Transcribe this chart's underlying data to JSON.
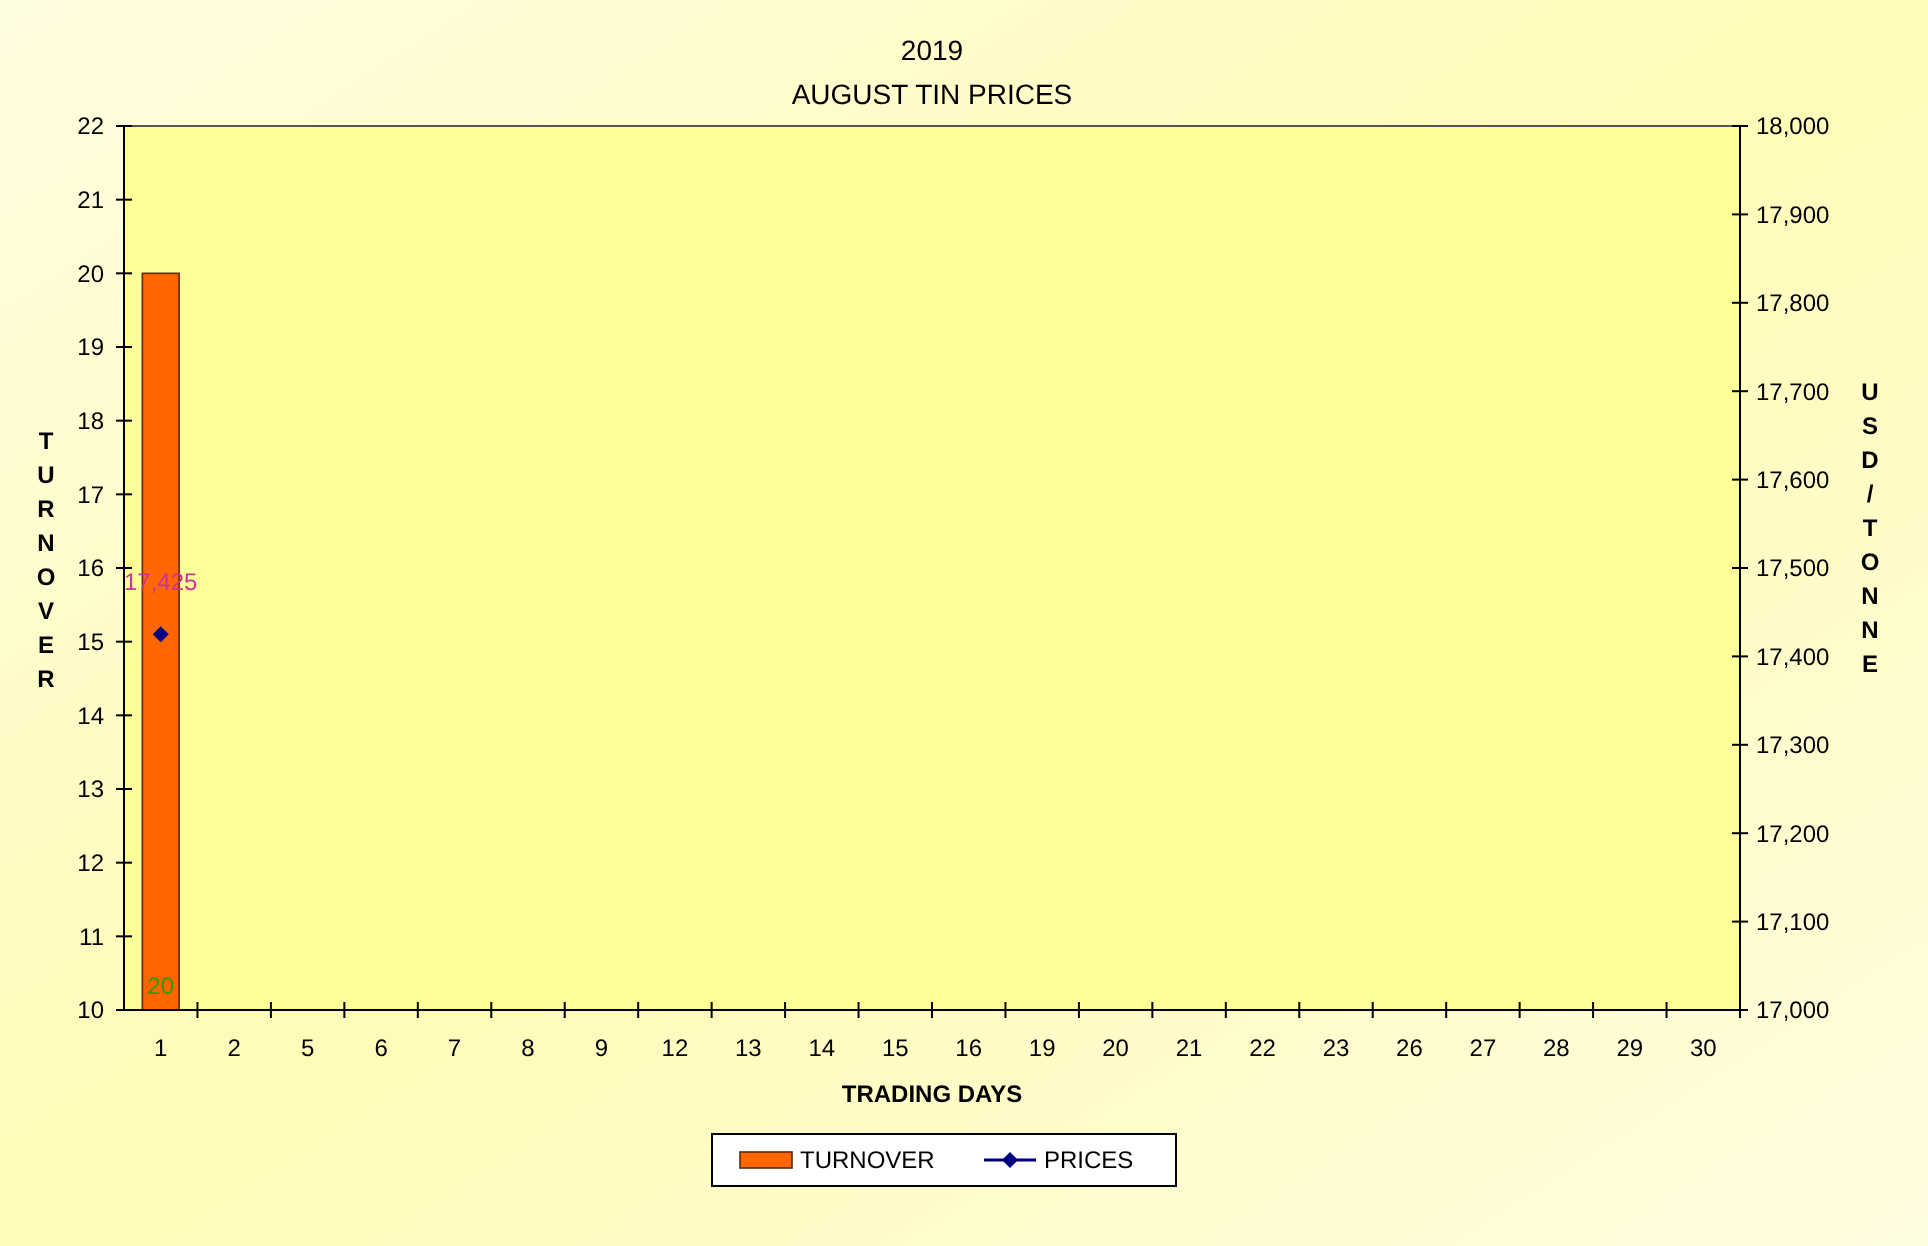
{
  "chart_data": {
    "type": "bar",
    "title": "2019",
    "subtitle": "AUGUST TIN PRICES",
    "xlabel": "TRADING DAYS",
    "ylabel": "TURNOVER",
    "y2label": "USD/TONNE",
    "categories": [
      "1",
      "2",
      "5",
      "6",
      "7",
      "8",
      "9",
      "12",
      "13",
      "14",
      "15",
      "16",
      "19",
      "20",
      "21",
      "22",
      "23",
      "26",
      "27",
      "28",
      "29",
      "30"
    ],
    "series": [
      {
        "name": "TURNOVER",
        "color": "#ff6600",
        "values": [
          20,
          null,
          null,
          null,
          null,
          null,
          null,
          null,
          null,
          null,
          null,
          null,
          null,
          null,
          null,
          null,
          null,
          null,
          null,
          null,
          null,
          null
        ],
        "value_labels": [
          "20",
          null,
          null,
          null,
          null,
          null,
          null,
          null,
          null,
          null,
          null,
          null,
          null,
          null,
          null,
          null,
          null,
          null,
          null,
          null,
          null,
          null
        ]
      },
      {
        "name": "PRICES",
        "type": "line",
        "axis": "y2",
        "color": "#000080",
        "marker": "diamond",
        "values": [
          17425,
          null,
          null,
          null,
          null,
          null,
          null,
          null,
          null,
          null,
          null,
          null,
          null,
          null,
          null,
          null,
          null,
          null,
          null,
          null,
          null,
          null
        ],
        "value_labels": [
          "17,425",
          null,
          null,
          null,
          null,
          null,
          null,
          null,
          null,
          null,
          null,
          null,
          null,
          null,
          null,
          null,
          null,
          null,
          null,
          null,
          null,
          null
        ]
      }
    ],
    "ylim": [
      10,
      22
    ],
    "yticks": [
      10,
      11,
      12,
      13,
      14,
      15,
      16,
      17,
      18,
      19,
      20,
      21,
      22
    ],
    "y2lim": [
      17000,
      18000
    ],
    "y2ticks": [
      {
        "value": 17000,
        "label": "17,000"
      },
      {
        "value": 17100,
        "label": "17,100"
      },
      {
        "value": 17200,
        "label": "17,200"
      },
      {
        "value": 17300,
        "label": "17,300"
      },
      {
        "value": 17400,
        "label": "17,400"
      },
      {
        "value": 17500,
        "label": "17,500"
      },
      {
        "value": 17600,
        "label": "17,600"
      },
      {
        "value": 17700,
        "label": "17,700"
      },
      {
        "value": 17800,
        "label": "17,800"
      },
      {
        "value": 17900,
        "label": "17,900"
      },
      {
        "value": 18000,
        "label": "18,000"
      }
    ],
    "grid": false,
    "legend": "bottom"
  }
}
